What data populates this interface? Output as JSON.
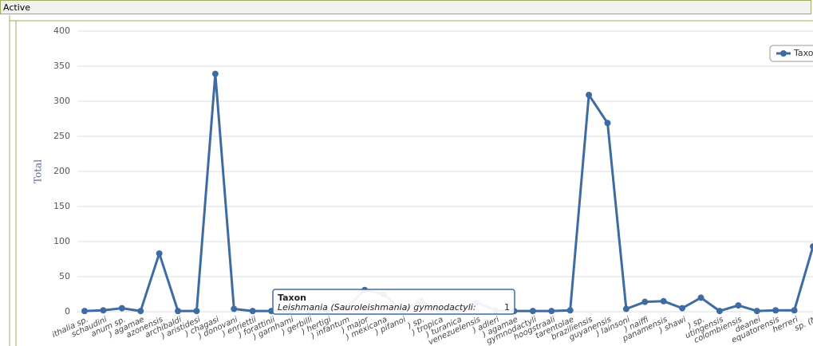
{
  "panel": {
    "title": "Active"
  },
  "chart_data": {
    "type": "line",
    "y_label": "Total",
    "categories": [
      "ithalia sp.",
      "schaudini",
      "anum sp.",
      ") agamae",
      "azonensis",
      "archibaldi",
      ") aristidesi",
      ") chagasi",
      ") donovani",
      ") enriettii",
      ") forattinii",
      ") garnhami",
      ") gerbilli",
      ") hertigi",
      ") infantum",
      ") major",
      ") mexicana",
      ") pifanoi",
      ") sp.",
      ") tropica",
      ") turanica",
      "venezuelensis",
      ") adleri",
      ") agamae",
      "gymnodactyli",
      "hoogstraali",
      "tarentolae",
      "braziliensis",
      "guyanensis",
      ") lainsoni",
      ") naiffi",
      "panamensis",
      ") shawi",
      ") sp.",
      "utingensis",
      "colombiensis",
      "deanei",
      "equatorensis",
      "herreri",
      "sp. (N"
    ],
    "series": [
      {
        "name": "Taxon",
        "color": "#3f6ba3",
        "values": [
          1,
          2,
          5,
          1,
          83,
          1,
          1,
          339,
          4,
          1,
          1,
          2,
          2,
          2,
          5,
          31,
          25,
          2,
          15,
          3,
          2,
          13,
          2,
          1,
          1,
          1,
          2,
          309,
          269,
          4,
          14,
          15,
          5,
          20,
          1,
          9,
          1,
          2,
          2,
          93
        ]
      }
    ],
    "ylim": [
      0,
      400
    ],
    "yticks": [
      0,
      50,
      100,
      150,
      200,
      250,
      300,
      350,
      400
    ],
    "grid": true,
    "legend": "top-right",
    "tooltip": {
      "title": "Taxon",
      "label": "Leishmania (Sauroleishmania) gymnodactyli:",
      "value": 1
    }
  }
}
